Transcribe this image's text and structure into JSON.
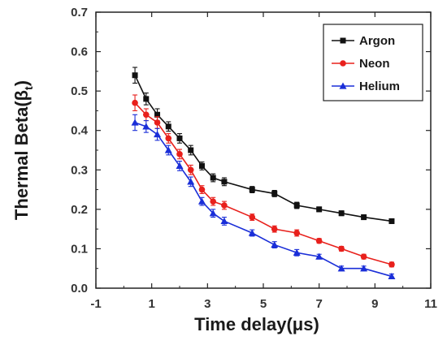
{
  "chart_data": {
    "type": "line",
    "xlabel": "Time delay(μs)",
    "ylabel": "Thermal Beta(β",
    "ylabel_subscript": "t",
    "ylabel_close": ")",
    "xlim": [
      -1,
      11
    ],
    "ylim": [
      0.0,
      0.7
    ],
    "xticks": [
      -1,
      1,
      3,
      5,
      7,
      9,
      11
    ],
    "xtick_labels": [
      "-1",
      "1",
      "3",
      "5",
      "7",
      "9",
      "11"
    ],
    "yticks": [
      0.0,
      0.1,
      0.2,
      0.3,
      0.4,
      0.5,
      0.6,
      0.7
    ],
    "ytick_labels": [
      "0.0",
      "0.1",
      "0.2",
      "0.3",
      "0.4",
      "0.5",
      "0.6",
      "0.7"
    ],
    "grid": false,
    "legend_position": "top-right",
    "series": [
      {
        "name": "Argon",
        "color": "#111111",
        "marker": "square",
        "x": [
          0.4,
          0.8,
          1.2,
          1.6,
          2.0,
          2.4,
          2.8,
          3.2,
          3.6,
          4.6,
          5.4,
          6.2,
          7.0,
          7.8,
          8.6,
          9.6
        ],
        "y": [
          0.54,
          0.48,
          0.44,
          0.41,
          0.38,
          0.35,
          0.31,
          0.28,
          0.27,
          0.25,
          0.24,
          0.21,
          0.2,
          0.19,
          0.18,
          0.17
        ],
        "err": [
          0.02,
          0.015,
          0.015,
          0.012,
          0.012,
          0.012,
          0.01,
          0.01,
          0.01,
          0.008,
          0.008,
          0.008,
          0.006,
          0.006,
          0.006,
          0.006
        ]
      },
      {
        "name": "Neon",
        "color": "#e8201c",
        "marker": "circle",
        "x": [
          0.4,
          0.8,
          1.2,
          1.6,
          2.0,
          2.4,
          2.8,
          3.2,
          3.6,
          4.6,
          5.4,
          6.2,
          7.0,
          7.8,
          8.6,
          9.6
        ],
        "y": [
          0.47,
          0.44,
          0.42,
          0.38,
          0.34,
          0.3,
          0.25,
          0.22,
          0.21,
          0.18,
          0.15,
          0.14,
          0.12,
          0.1,
          0.08,
          0.06
        ],
        "err": [
          0.02,
          0.015,
          0.015,
          0.012,
          0.012,
          0.012,
          0.01,
          0.01,
          0.01,
          0.008,
          0.008,
          0.008,
          0.006,
          0.006,
          0.006,
          0.006
        ]
      },
      {
        "name": "Helium",
        "color": "#1a2ed8",
        "marker": "triangle",
        "x": [
          0.4,
          0.8,
          1.2,
          1.6,
          2.0,
          2.4,
          2.8,
          3.2,
          3.6,
          4.6,
          5.4,
          6.2,
          7.0,
          7.8,
          8.6,
          9.6
        ],
        "y": [
          0.42,
          0.41,
          0.39,
          0.35,
          0.31,
          0.27,
          0.22,
          0.19,
          0.17,
          0.14,
          0.11,
          0.09,
          0.08,
          0.05,
          0.05,
          0.03
        ],
        "err": [
          0.02,
          0.015,
          0.015,
          0.012,
          0.012,
          0.012,
          0.01,
          0.01,
          0.01,
          0.008,
          0.008,
          0.008,
          0.006,
          0.006,
          0.006,
          0.006
        ]
      }
    ]
  }
}
